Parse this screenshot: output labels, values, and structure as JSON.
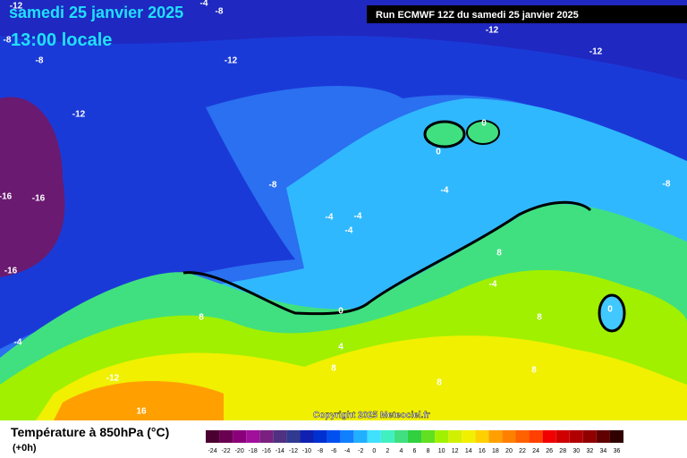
{
  "header": {
    "date": "samedi 25 janvier 2025",
    "time": "13:00 locale",
    "run": "Run ECMWF 12Z du samedi 25 janvier 2025"
  },
  "contour_labels": [
    "-12",
    "-4",
    "-8",
    "-12",
    "-8",
    "-8",
    "-12",
    "-12",
    "-12",
    "0",
    "0",
    "-8",
    "-4",
    "-8",
    "-16",
    "-16",
    "-4",
    "-4",
    "-4",
    "8",
    "-16",
    "-4",
    "0",
    "0",
    "8",
    "8",
    "-4",
    "4",
    "8",
    "8",
    "-12",
    "8",
    "16"
  ],
  "copyright": "Copyright 2025 Meteociel.fr",
  "legend": {
    "title": "Température à 850hPa (°C)",
    "step": "(+0h)",
    "ticks": [
      -24,
      -22,
      -20,
      -18,
      -16,
      -14,
      -12,
      -10,
      -8,
      -6,
      -4,
      -2,
      0,
      2,
      4,
      6,
      8,
      10,
      12,
      14,
      16,
      18,
      20,
      22,
      24,
      26,
      28,
      30,
      32,
      34,
      36
    ],
    "colors": [
      "#4a0030",
      "#6a0050",
      "#8a007a",
      "#a0109a",
      "#7a2080",
      "#503080",
      "#303a90",
      "#1020b0",
      "#0030d0",
      "#0050f0",
      "#1080ff",
      "#20b0ff",
      "#40e0ff",
      "#40f0c0",
      "#40e080",
      "#30d040",
      "#60e020",
      "#a0f000",
      "#d0f000",
      "#f0f000",
      "#ffd000",
      "#ffa000",
      "#ff8000",
      "#ff6000",
      "#ff4000",
      "#f00000",
      "#d00000",
      "#b00000",
      "#900000",
      "#600000",
      "#300000"
    ]
  }
}
